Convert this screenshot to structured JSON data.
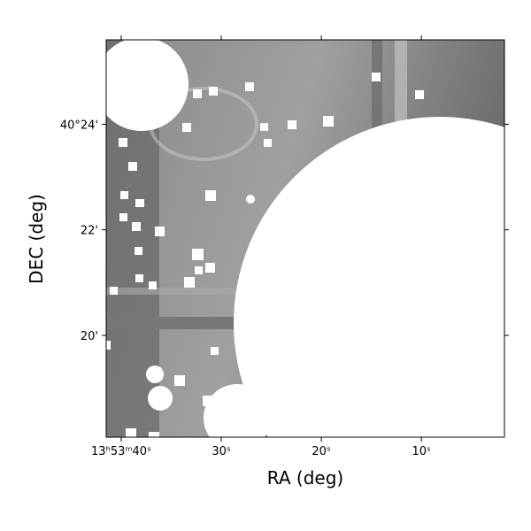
{
  "chart_data": {
    "type": "image",
    "xlabel": "RA (deg)",
    "ylabel": "DEC (deg)",
    "xlim": [
      41.5,
      1.7
    ],
    "xticks": [
      {
        "value": 40,
        "label": "13ʰ53ᵐ40ˢ"
      },
      {
        "value": 30,
        "label": "30ˢ"
      },
      {
        "value": 20,
        "label": "20ˢ"
      },
      {
        "value": 10,
        "label": "10ˢ"
      }
    ],
    "ylim": [
      18.07,
      25.6
    ],
    "yticks": [
      {
        "value": 24,
        "label": "40°24'"
      },
      {
        "value": 22,
        "label": "22'"
      },
      {
        "value": 20,
        "label": "20'"
      }
    ],
    "colormap": "gray"
  }
}
